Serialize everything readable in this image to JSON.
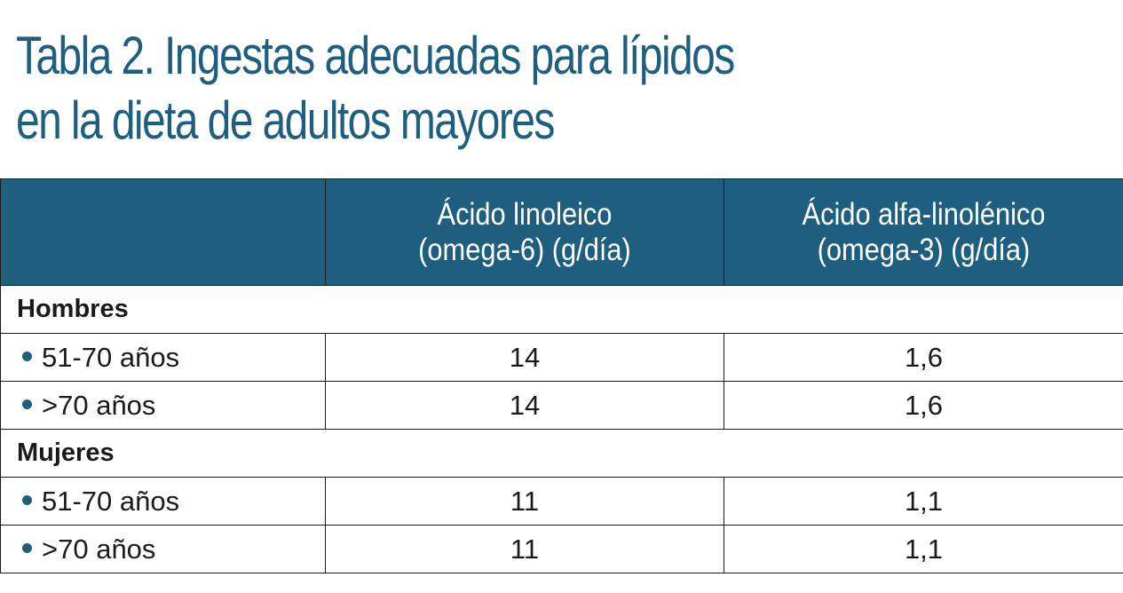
{
  "title": {
    "line1": "Tabla 2. Ingestas adecuadas para lípidos",
    "line2": "en la dieta de adultos mayores"
  },
  "table": {
    "header": {
      "col1": "",
      "col2_line1": "Ácido linoleico",
      "col2_line2": "(omega-6) (g/día)",
      "col3_line1": "Ácido alfa-linolénico",
      "col3_line2": "(omega-3) (g/día)"
    },
    "groups": [
      {
        "name": "Hombres",
        "rows": [
          {
            "label": "51-70 años",
            "omega6": "14",
            "omega3": "1,6"
          },
          {
            "label": ">70 años",
            "omega6": "14",
            "omega3": "1,6"
          }
        ]
      },
      {
        "name": "Mujeres",
        "rows": [
          {
            "label": "51-70 años",
            "omega6": "11",
            "omega3": "1,1"
          },
          {
            "label": ">70 años",
            "omega6": "11",
            "omega3": "1,1"
          }
        ]
      }
    ],
    "colors": {
      "accent": "#1e5e7f",
      "header_text": "#ffffff",
      "border": "#1a1a1a"
    }
  }
}
